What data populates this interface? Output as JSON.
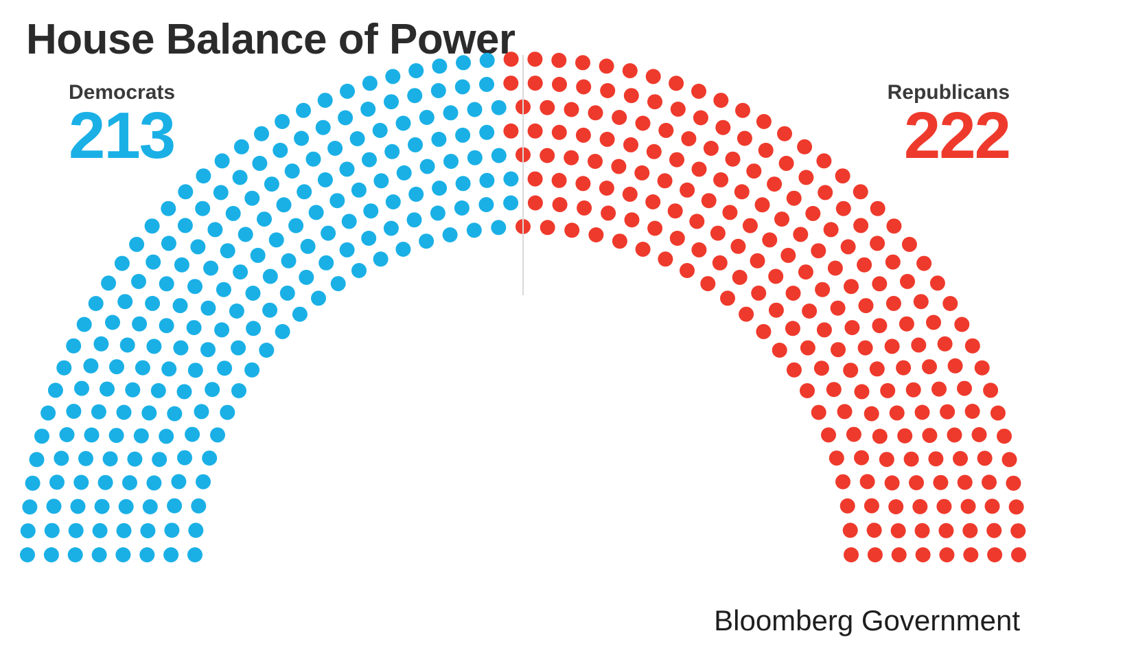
{
  "title": "House Balance of Power",
  "source": "Bloomberg Government",
  "colors": {
    "democrats": "#1ab0e6",
    "republicans": "#ee3a2c",
    "divider": "#d9d9d9"
  },
  "chart_data": {
    "type": "parliament",
    "title": "House Balance of Power",
    "total_seats": 435,
    "series": [
      {
        "name": "Democrats",
        "value": 213,
        "color": "#1ab0e6"
      },
      {
        "name": "Republicans",
        "value": 222,
        "color": "#ee3a2c"
      }
    ]
  }
}
